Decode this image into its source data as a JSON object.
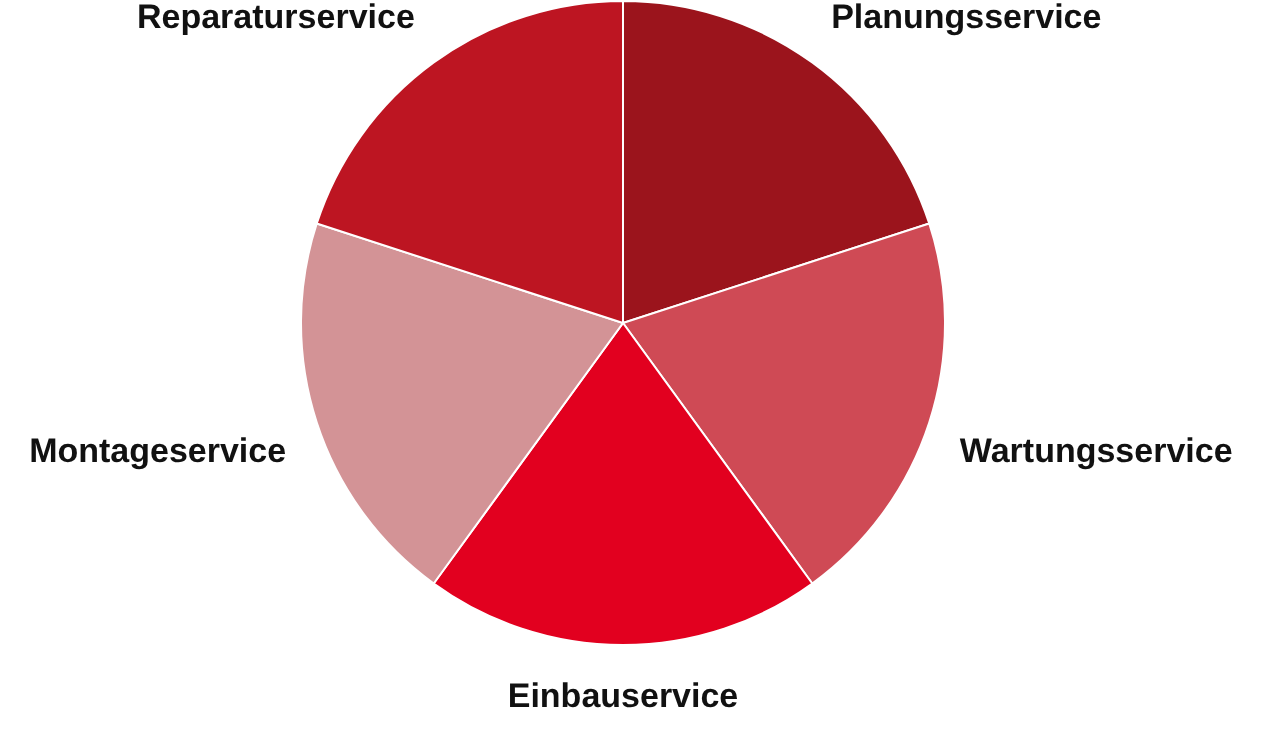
{
  "chart_data": {
    "type": "pie",
    "categories": [
      "Planungsservice",
      "Wartungsservice",
      "Einbauservice",
      "Montageservice",
      "Reparaturservice"
    ],
    "values": [
      20,
      20,
      20,
      20,
      20
    ],
    "colors": [
      "#9b141c",
      "#cf4a55",
      "#e2001f",
      "#d39396",
      "#bd1522"
    ],
    "legend": false
  }
}
